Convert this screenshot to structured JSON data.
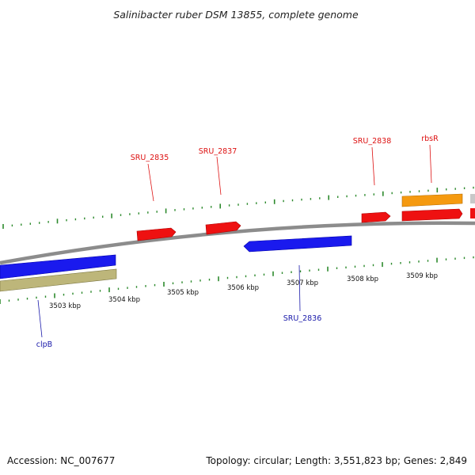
{
  "title": "Salinibacter ruber DSM 13855, complete genome",
  "accession": "Accession: NC_007677",
  "topology": "Topology: circular; Length: 3,551,823 bp; Genes: 2,849",
  "colors": {
    "backbone": "#8c8c8c",
    "tick": "#2d8a2d",
    "label_red": "#dd1111",
    "label_blue": "#1a1aaa",
    "gene_red": "#ee1111",
    "gene_blue": "#1a1aee",
    "gene_orange": "#f59a10",
    "gene_olive": "#bdb67a",
    "gene_gray": "#c8c8c8"
  },
  "kbp_labels": [
    "3503 kbp",
    "3504 kbp",
    "3505 kbp",
    "3506 kbp",
    "3507 kbp",
    "3508 kbp",
    "3509 kbp"
  ],
  "gene_labels": [
    {
      "name": "SRU_2835",
      "color": "red"
    },
    {
      "name": "SRU_2837",
      "color": "red"
    },
    {
      "name": "SRU_2838",
      "color": "red"
    },
    {
      "name": "rbsR",
      "color": "red"
    },
    {
      "name": "SRU_2836",
      "color": "blue"
    },
    {
      "name": "clpB",
      "color": "blue"
    }
  ]
}
